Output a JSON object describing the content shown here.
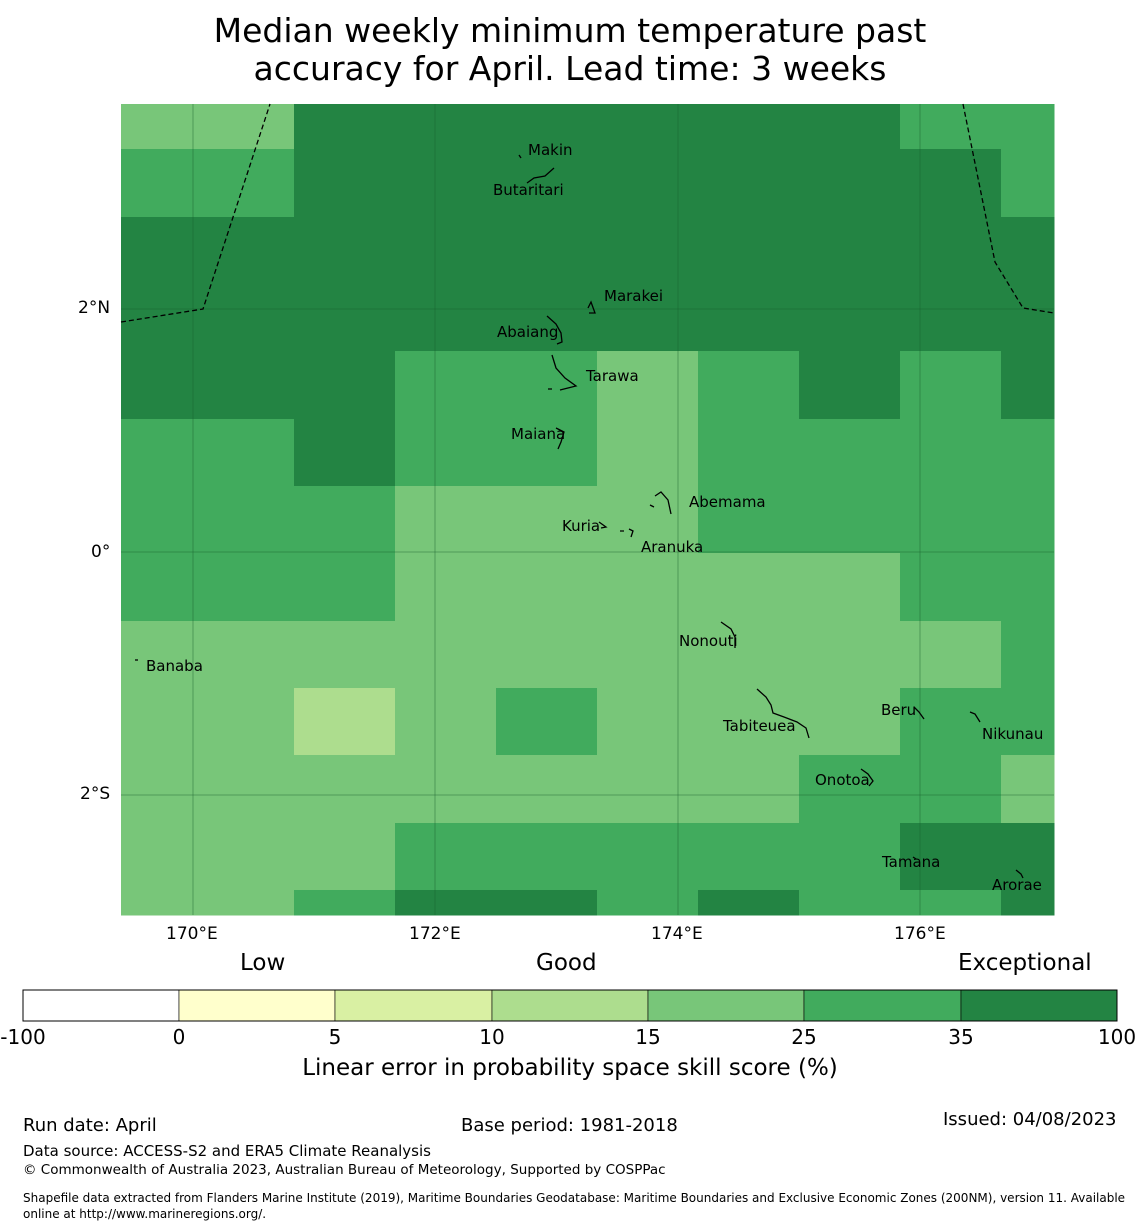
{
  "title_line1": "Median weekly minimum temperature past",
  "title_line2": "accuracy for April. Lead time: 3 weeks",
  "map": {
    "lon_ticks": [
      "170°E",
      "172°E",
      "174°E",
      "176°E"
    ],
    "lat_ticks": [
      "2°N",
      "0°",
      "2°S"
    ],
    "palette": [
      "#ffffff",
      "#ffffcc",
      "#d9f0a3",
      "#addd8e",
      "#78c679",
      "#41ab5d",
      "#238443"
    ],
    "grid_rows": [
      [
        4,
        6,
        6,
        6,
        6,
        6,
        6,
        5,
        5
      ],
      [
        5,
        6,
        6,
        6,
        6,
        6,
        6,
        6,
        5
      ],
      [
        6,
        6,
        6,
        6,
        6,
        6,
        6,
        6,
        6
      ],
      [
        6,
        6,
        6,
        6,
        6,
        6,
        6,
        6,
        6
      ],
      [
        6,
        6,
        5,
        5,
        4,
        5,
        6,
        5,
        6
      ],
      [
        5,
        6,
        5,
        5,
        4,
        5,
        5,
        5,
        5
      ],
      [
        5,
        5,
        4,
        4,
        4,
        5,
        5,
        5,
        5
      ],
      [
        5,
        5,
        4,
        4,
        4,
        4,
        4,
        5,
        5
      ],
      [
        4,
        4,
        4,
        4,
        4,
        4,
        4,
        4,
        5
      ],
      [
        4,
        3,
        4,
        5,
        4,
        4,
        4,
        5,
        5
      ],
      [
        4,
        4,
        4,
        4,
        4,
        4,
        5,
        5,
        4
      ],
      [
        4,
        4,
        5,
        5,
        5,
        5,
        5,
        6,
        6
      ],
      [
        4,
        5,
        6,
        6,
        5,
        6,
        5,
        5,
        6
      ]
    ],
    "islands": [
      "Makin",
      "Butaritari",
      "Marakei",
      "Abaiang",
      "Tarawa",
      "Maiana",
      "Abemama",
      "Kuria",
      "Aranuka",
      "Nonouti",
      "Banaba",
      "Beru",
      "Tabiteuea",
      "Nikunau",
      "Onotoa",
      "Tamana",
      "Arorae"
    ]
  },
  "colorbar": {
    "category_low": "Low",
    "category_good": "Good",
    "category_exceptional": "Exceptional",
    "ticks": [
      "-100",
      "0",
      "5",
      "10",
      "15",
      "25",
      "35",
      "100"
    ],
    "label": "Linear error in probability space skill score (%)"
  },
  "footer": {
    "run_date": "Run date: April",
    "base_period": "Base period: 1981-2018",
    "issued": "Issued: 04/08/2023",
    "data_source": "Data source: ACCESS-S2 and ERA5 Climate Reanalysis",
    "copyright": "© Commonwealth of Australia 2023, Australian Bureau of Meteorology, Supported by COSPPac",
    "shapefile_line1": "Shapefile data extracted from Flanders Marine Institute (2019), Maritime Boundaries Geodatabase: Maritime Boundaries and Exclusive Economic Zones (200NM), version 11. Available",
    "shapefile_line2": "online at http://www.marineregions.org/."
  }
}
